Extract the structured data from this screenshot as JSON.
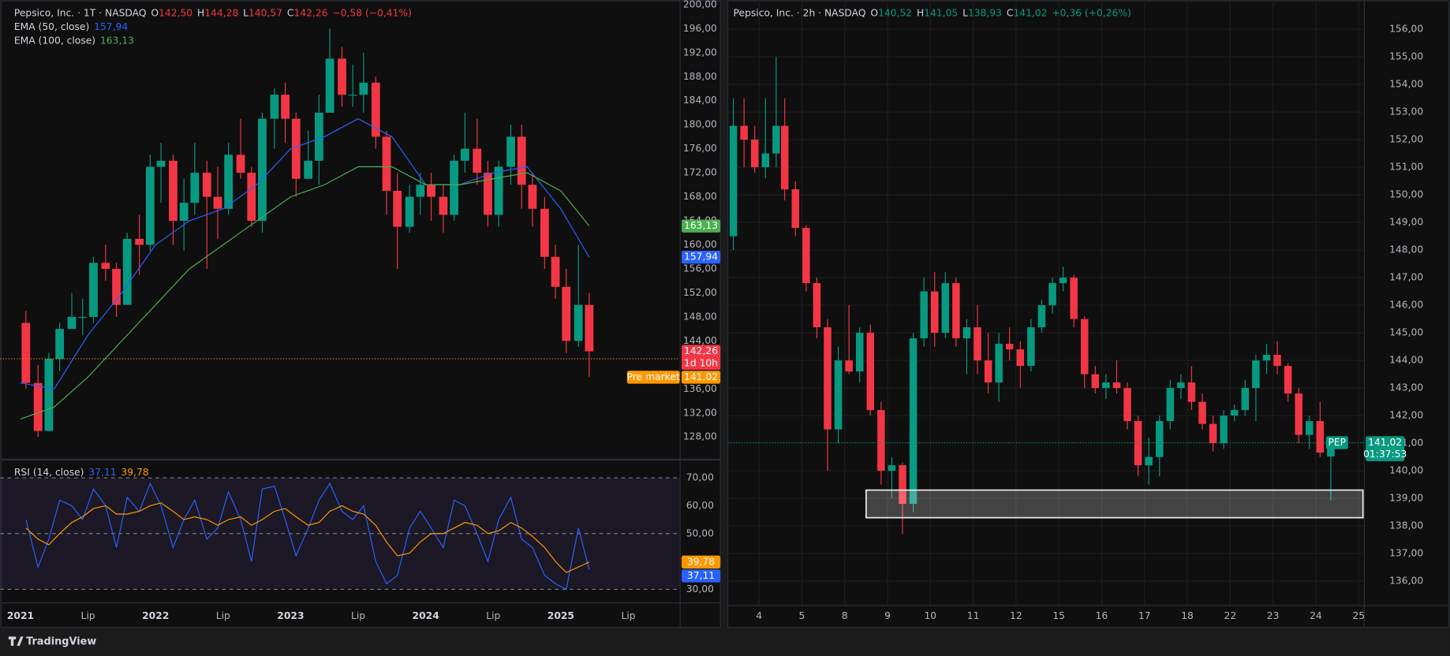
{
  "chart_data": [
    {
      "type": "candlestick",
      "title": "Pepsico, Inc. · 1T · NASDAQ",
      "ohlc": [
        [
          "O",
          "142,50"
        ],
        [
          "H",
          "144,28"
        ],
        [
          "L",
          "140,57"
        ],
        [
          "C",
          "142,26"
        ]
      ],
      "change": "−0,58 (−0,41%)",
      "up_color": "#089981",
      "down_color": "#f23645",
      "x": [
        2021.04,
        2021.13,
        2021.21,
        2021.29,
        2021.38,
        2021.46,
        2021.54,
        2021.63,
        2021.71,
        2021.79,
        2021.88,
        2021.96,
        2022.04,
        2022.13,
        2022.21,
        2022.29,
        2022.38,
        2022.46,
        2022.54,
        2022.63,
        2022.71,
        2022.79,
        2022.88,
        2022.96,
        2023.04,
        2023.13,
        2023.21,
        2023.29,
        2023.38,
        2023.46,
        2023.54,
        2023.63,
        2023.71,
        2023.79,
        2023.88,
        2023.96,
        2024.04,
        2024.13,
        2024.21,
        2024.29,
        2024.38,
        2024.46,
        2024.54,
        2024.63,
        2024.71,
        2024.79,
        2024.88,
        2024.96,
        2025.04,
        2025.13,
        2025.21
      ],
      "open": [
        147,
        137,
        129,
        141,
        146,
        148,
        148,
        157,
        156,
        150,
        161,
        160,
        173,
        174,
        164,
        167,
        172,
        168,
        166,
        175,
        172,
        164,
        181,
        185,
        181,
        171,
        174,
        182,
        191,
        185,
        185,
        187,
        178,
        169,
        163,
        168,
        170,
        168,
        165,
        174,
        176,
        172,
        165,
        173,
        178,
        170,
        166,
        158,
        153,
        144,
        150
      ],
      "high": [
        149,
        140,
        142,
        147,
        152,
        151,
        158,
        160,
        157,
        162,
        165,
        175,
        177,
        175,
        171,
        177,
        174,
        173,
        177,
        181,
        173,
        182,
        186,
        187,
        182,
        179,
        185,
        196,
        193,
        190,
        192,
        188,
        179,
        172,
        170,
        172,
        172,
        170,
        175,
        182,
        181,
        174,
        174,
        180,
        180,
        172,
        168,
        160,
        156,
        160,
        152
      ],
      "low": [
        136,
        128,
        129,
        139,
        146,
        145,
        147,
        154,
        148,
        150,
        155,
        159,
        167,
        160,
        159,
        165,
        156,
        161,
        165,
        171,
        163,
        162,
        176,
        177,
        168,
        171,
        170,
        182,
        183,
        183,
        182,
        176,
        165,
        156,
        162,
        165,
        164,
        162,
        164,
        172,
        170,
        163,
        163,
        170,
        166,
        163,
        156,
        151,
        142,
        143,
        138
      ],
      "close": [
        137,
        129,
        141,
        146,
        148,
        148,
        157,
        156,
        150,
        161,
        160,
        173,
        174,
        164,
        167,
        172,
        168,
        166,
        175,
        172,
        164,
        181,
        185,
        181,
        171,
        174,
        182,
        191,
        185,
        185,
        187,
        178,
        169,
        163,
        168,
        170,
        168,
        165,
        174,
        176,
        172,
        165,
        173,
        178,
        170,
        166,
        158,
        153,
        144,
        150,
        142.26
      ],
      "last_label": "142,26",
      "countdown": "1d 10h",
      "premarket": {
        "label": "Pre market",
        "value": 141.02,
        "value_label": "141,02",
        "color": "#ff9800"
      },
      "lines": [
        {
          "name": "EMA (50, close)",
          "color": "#2962ff",
          "x": [
            2021,
            2021.25,
            2021.5,
            2021.75,
            2022,
            2022.25,
            2022.5,
            2022.75,
            2023,
            2023.25,
            2023.5,
            2023.75,
            2024,
            2024.25,
            2024.5,
            2024.75,
            2025,
            2025.21
          ],
          "values": [
            137,
            136,
            145,
            152,
            160,
            164,
            166,
            170,
            176,
            178,
            181,
            178,
            170,
            170,
            172,
            173,
            166,
            157.94
          ],
          "value_label": "157,94"
        },
        {
          "name": "EMA (100, close)",
          "color": "#4caf50",
          "x": [
            2021,
            2021.25,
            2021.5,
            2021.75,
            2022,
            2022.25,
            2022.5,
            2022.75,
            2023,
            2023.25,
            2023.5,
            2023.75,
            2024,
            2024.25,
            2024.5,
            2024.75,
            2025,
            2025.21
          ],
          "values": [
            131,
            133,
            138,
            144,
            150,
            156,
            160,
            164,
            168,
            170,
            173,
            173,
            170,
            170,
            171,
            172,
            169,
            163.13
          ],
          "value_label": "163,13"
        }
      ],
      "xlim": [
        2020.85,
        2025.88
      ],
      "xticks": [
        2021,
        {
          "value": 2021.5,
          "label": "Lip"
        },
        2022,
        {
          "value": 2022.5,
          "label": "Lip"
        },
        2023,
        {
          "value": 2023.5,
          "label": "Lip"
        },
        2024,
        {
          "value": 2024.5,
          "label": "Lip"
        },
        2025,
        {
          "value": 2025.5,
          "label": "Lip"
        }
      ],
      "ylim": [
        124.3,
        200.77
      ],
      "yticks": [
        {
          "value": 128,
          "label": "128,00"
        },
        {
          "value": 132,
          "label": "132,00"
        },
        {
          "value": 136,
          "label": "136,00"
        },
        {
          "value": 140,
          "label": "140,00"
        },
        {
          "value": 144,
          "label": "144,00"
        },
        {
          "value": 148,
          "label": "148,00"
        },
        {
          "value": 152,
          "label": "152,00"
        },
        {
          "value": 156,
          "label": "156,00"
        },
        {
          "value": 160,
          "label": "160,00"
        },
        {
          "value": 164,
          "label": "164,00"
        },
        {
          "value": 168,
          "label": "168,00"
        },
        {
          "value": 172,
          "label": "172,00"
        },
        {
          "value": 176,
          "label": "176,00"
        },
        {
          "value": 180,
          "label": "180,00"
        },
        {
          "value": 184,
          "label": "184,00"
        },
        {
          "value": 188,
          "label": "188,00"
        },
        {
          "value": 192,
          "label": "192,00"
        },
        {
          "value": 196,
          "label": "196,00"
        },
        {
          "value": 200,
          "label": "200,00"
        }
      ],
      "grid": false
    },
    {
      "type": "line",
      "title": "RSI (14, close)",
      "x": [
        2021.04,
        2021.13,
        2021.21,
        2021.29,
        2021.38,
        2021.46,
        2021.54,
        2021.63,
        2021.71,
        2021.79,
        2021.88,
        2021.96,
        2022.04,
        2022.13,
        2022.21,
        2022.29,
        2022.38,
        2022.46,
        2022.54,
        2022.63,
        2022.71,
        2022.79,
        2022.88,
        2022.96,
        2023.04,
        2023.13,
        2023.21,
        2023.29,
        2023.38,
        2023.46,
        2023.54,
        2023.63,
        2023.71,
        2023.79,
        2023.88,
        2023.96,
        2024.04,
        2024.13,
        2024.21,
        2024.29,
        2024.38,
        2024.46,
        2024.54,
        2024.63,
        2024.71,
        2024.79,
        2024.88,
        2024.96,
        2025.04,
        2025.13,
        2025.21
      ],
      "series": [
        {
          "color": "#2962ff",
          "values": [
            55,
            38,
            48,
            62,
            60,
            55,
            66,
            60,
            45,
            63,
            58,
            68,
            60,
            45,
            55,
            62,
            48,
            52,
            65,
            55,
            40,
            66,
            67,
            55,
            42,
            52,
            62,
            68,
            58,
            55,
            60,
            40,
            32,
            35,
            52,
            58,
            52,
            45,
            62,
            60,
            50,
            40,
            55,
            63,
            48,
            45,
            35,
            32,
            30,
            52,
            37.11
          ],
          "value_label": "37,11"
        },
        {
          "color": "#ff9800",
          "values": [
            52,
            48,
            46,
            50,
            54,
            56,
            59,
            60,
            57,
            57,
            58,
            60,
            61,
            58,
            55,
            56,
            55,
            53,
            55,
            56,
            53,
            55,
            58,
            59,
            56,
            53,
            54,
            58,
            60,
            58,
            57,
            53,
            47,
            42,
            43,
            47,
            50,
            50,
            52,
            54,
            53,
            50,
            51,
            54,
            52,
            49,
            45,
            40,
            36,
            38,
            39.78
          ],
          "value_label": "39,78"
        }
      ],
      "band": [
        30,
        70
      ],
      "dashed_levels": [
        70,
        50,
        30
      ],
      "xlim": [
        2020.85,
        2025.88
      ],
      "ylim": [
        25.3,
        76.7
      ],
      "yticks": [
        {
          "value": 30,
          "label": "30,00"
        },
        {
          "value": 40,
          "label": "40,00"
        },
        {
          "value": 50,
          "label": "50,00"
        },
        {
          "value": 60,
          "label": "60,00"
        },
        {
          "value": 70,
          "label": "70,00"
        }
      ]
    },
    {
      "type": "candlestick",
      "title": "Pepsico, Inc. · 2h · NASDAQ",
      "ohlc": [
        [
          "O",
          "140,52"
        ],
        [
          "H",
          "141,05"
        ],
        [
          "L",
          "138,93"
        ],
        [
          "C",
          "141,02"
        ]
      ],
      "change": "+0,36 (+0,26%)",
      "up_color": "#089981",
      "down_color": "#f23645",
      "x": [
        -0.6,
        -0.35,
        -0.1,
        0.15,
        0.4,
        0.6,
        0.85,
        1.1,
        1.35,
        1.6,
        1.85,
        2.1,
        2.35,
        2.6,
        2.85,
        3.1,
        3.35,
        3.6,
        3.85,
        4.1,
        4.35,
        4.6,
        4.85,
        5.1,
        5.35,
        5.6,
        5.85,
        6.1,
        6.35,
        6.6,
        6.85,
        7.1,
        7.35,
        7.6,
        7.85,
        8.1,
        8.35,
        8.6,
        8.85,
        9.1,
        9.35,
        9.6,
        9.85,
        10.1,
        10.35,
        10.6,
        10.85,
        11.1,
        11.35,
        11.6,
        11.85,
        12.1,
        12.35,
        12.6,
        12.85,
        13.1,
        13.35
      ],
      "open": [
        148.5,
        152.5,
        152,
        151,
        151.5,
        152.5,
        150.2,
        148.8,
        146.8,
        145.2,
        141.5,
        144,
        143.6,
        145,
        142.2,
        140,
        140.2,
        138.8,
        144.8,
        146.5,
        145,
        146.8,
        144.8,
        145.2,
        144,
        143.2,
        144.6,
        144.4,
        143.8,
        145.2,
        146,
        146.8,
        147,
        145.5,
        143.5,
        143,
        143.2,
        143,
        141.8,
        140.2,
        140.5,
        141.8,
        143,
        143.2,
        142.5,
        141.7,
        141,
        142,
        142.2,
        143,
        144,
        144.2,
        143.8,
        142.8,
        141.3,
        141.8,
        140.52
      ],
      "high": [
        153.5,
        153.5,
        152.5,
        153.5,
        155,
        153.5,
        150.5,
        148.9,
        147,
        145.5,
        144.5,
        146,
        145.2,
        145.3,
        142.5,
        140.5,
        140.3,
        145,
        147,
        147.2,
        147.2,
        147,
        145.5,
        146,
        145,
        145,
        145.2,
        144.7,
        145.5,
        146.2,
        147,
        147.4,
        147.1,
        145.6,
        143.8,
        143.5,
        144,
        143.2,
        142,
        141.2,
        142,
        143.3,
        143.5,
        143.8,
        142.8,
        142,
        142.2,
        142.4,
        143.3,
        144.2,
        144.6,
        144.7,
        143.9,
        143,
        142,
        142.5,
        141.05
      ],
      "low": [
        148,
        151,
        150.8,
        150.6,
        151,
        149.8,
        148.5,
        146.5,
        144.8,
        140,
        141,
        143.5,
        143.2,
        142,
        139.5,
        139,
        137.7,
        138.5,
        144.5,
        144.5,
        144.8,
        144.5,
        143.5,
        143.5,
        142.8,
        142.5,
        144,
        143,
        143.6,
        145,
        145.7,
        146.5,
        145.2,
        143,
        142.8,
        142.6,
        142.8,
        141.5,
        139.8,
        139.5,
        139.8,
        141.5,
        142.6,
        142.2,
        141.5,
        140.7,
        140.8,
        141.8,
        142,
        141.8,
        143.5,
        143.5,
        142.5,
        141,
        140.8,
        140.5,
        138.93
      ],
      "close": [
        152.5,
        152,
        151,
        151.5,
        152.5,
        150.2,
        148.8,
        146.8,
        145.2,
        141.5,
        144,
        143.6,
        145,
        142.2,
        140,
        140.2,
        138.8,
        144.8,
        146.5,
        145,
        146.8,
        144.8,
        145.2,
        144,
        143.2,
        144.6,
        144.4,
        143.8,
        145.2,
        146,
        146.8,
        147,
        145.5,
        143.5,
        143,
        143.2,
        143,
        141.8,
        140.2,
        140.5,
        141.8,
        143,
        143.2,
        142.5,
        141.7,
        141,
        142,
        142.2,
        143,
        144,
        144.2,
        143.8,
        142.8,
        141.3,
        141.8,
        140.66,
        141.02
      ],
      "last_label": "141,02",
      "countdown": "01:37:53",
      "symbol": "PEP",
      "last_line": true,
      "rectangle": {
        "x": [
          2.5,
          14.1
        ],
        "y": [
          138.3,
          139.3
        ]
      },
      "xlim": [
        -0.73,
        14.12
      ],
      "xticks": [
        {
          "value": 0,
          "label": "4"
        },
        {
          "value": 1,
          "label": "5"
        },
        {
          "value": 2,
          "label": "8"
        },
        {
          "value": 3,
          "label": "9"
        },
        {
          "value": 4,
          "label": "10"
        },
        {
          "value": 5,
          "label": "11"
        },
        {
          "value": 6,
          "label": "12"
        },
        {
          "value": 7,
          "label": "15"
        },
        {
          "value": 8,
          "label": "16"
        },
        {
          "value": 9,
          "label": "17"
        },
        {
          "value": 10,
          "label": "18"
        },
        {
          "value": 11,
          "label": "22"
        },
        {
          "value": 12,
          "label": "23"
        },
        {
          "value": 13,
          "label": "24"
        },
        {
          "value": 14,
          "label": "25"
        }
      ],
      "ylim": [
        135.13,
        157.06
      ],
      "yticks": [
        {
          "value": 136,
          "label": "136,00"
        },
        {
          "value": 137,
          "label": "137,00"
        },
        {
          "value": 138,
          "label": "138,00"
        },
        {
          "value": 139,
          "label": "139,00"
        },
        {
          "value": 140,
          "label": "140,00"
        },
        {
          "value": 141,
          "label": "141,00"
        },
        {
          "value": 142,
          "label": "142,00"
        },
        {
          "value": 143,
          "label": "143,00"
        },
        {
          "value": 144,
          "label": "144,00"
        },
        {
          "value": 145,
          "label": "145,00"
        },
        {
          "value": 146,
          "label": "146,00"
        },
        {
          "value": 147,
          "label": "147,00"
        },
        {
          "value": 148,
          "label": "148,00"
        },
        {
          "value": 149,
          "label": "149,00"
        },
        {
          "value": 150,
          "label": "150,00"
        },
        {
          "value": 151,
          "label": "151,00"
        },
        {
          "value": 152,
          "label": "152,00"
        },
        {
          "value": 153,
          "label": "153,00"
        },
        {
          "value": 154,
          "label": "154,00"
        },
        {
          "value": 155,
          "label": "155,00"
        },
        {
          "value": 156,
          "label": "156,00"
        }
      ],
      "grid": true
    }
  ],
  "footer": {
    "brand": "TradingView"
  }
}
